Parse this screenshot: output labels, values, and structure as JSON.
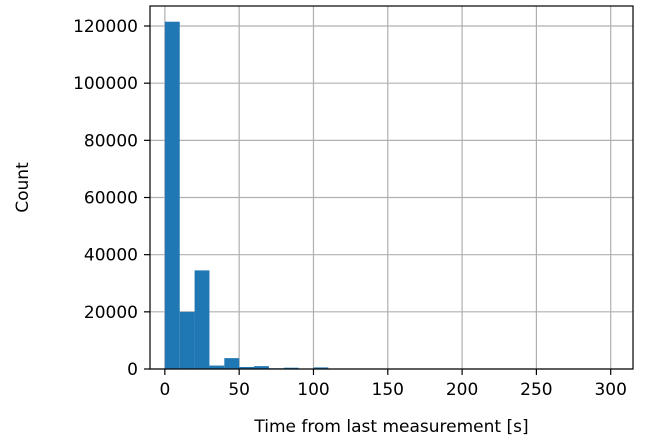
{
  "chart_data": {
    "type": "bar",
    "subtype": "histogram",
    "xlabel": "Time from last measurement [s]",
    "ylabel": "Count",
    "xlim": [
      -10,
      315
    ],
    "ylim": [
      0,
      127000
    ],
    "xticks": [
      0,
      50,
      100,
      150,
      200,
      250,
      300
    ],
    "yticks": [
      0,
      20000,
      40000,
      60000,
      80000,
      100000,
      120000
    ],
    "grid": true,
    "bar_color": "#1f77b4",
    "bin_width": 10,
    "bins": [
      {
        "start": 0,
        "end": 10,
        "value": 121500
      },
      {
        "start": 10,
        "end": 20,
        "value": 20000
      },
      {
        "start": 20,
        "end": 30,
        "value": 34500
      },
      {
        "start": 30,
        "end": 40,
        "value": 1200
      },
      {
        "start": 40,
        "end": 50,
        "value": 3800
      },
      {
        "start": 50,
        "end": 60,
        "value": 700
      },
      {
        "start": 60,
        "end": 70,
        "value": 1000
      },
      {
        "start": 70,
        "end": 80,
        "value": 250
      },
      {
        "start": 80,
        "end": 90,
        "value": 450
      },
      {
        "start": 90,
        "end": 100,
        "value": 150
      },
      {
        "start": 100,
        "end": 110,
        "value": 550
      },
      {
        "start": 110,
        "end": 120,
        "value": 80
      },
      {
        "start": 120,
        "end": 130,
        "value": 60
      },
      {
        "start": 130,
        "end": 140,
        "value": 40
      },
      {
        "start": 140,
        "end": 150,
        "value": 30
      },
      {
        "start": 150,
        "end": 160,
        "value": 25
      },
      {
        "start": 160,
        "end": 170,
        "value": 20
      },
      {
        "start": 170,
        "end": 180,
        "value": 15
      },
      {
        "start": 180,
        "end": 190,
        "value": 15
      },
      {
        "start": 190,
        "end": 200,
        "value": 10
      },
      {
        "start": 200,
        "end": 210,
        "value": 10
      },
      {
        "start": 210,
        "end": 220,
        "value": 8
      },
      {
        "start": 220,
        "end": 230,
        "value": 8
      },
      {
        "start": 230,
        "end": 240,
        "value": 6
      },
      {
        "start": 240,
        "end": 250,
        "value": 6
      },
      {
        "start": 250,
        "end": 260,
        "value": 5
      },
      {
        "start": 260,
        "end": 270,
        "value": 5
      },
      {
        "start": 270,
        "end": 280,
        "value": 4
      },
      {
        "start": 280,
        "end": 290,
        "value": 4
      },
      {
        "start": 290,
        "end": 300,
        "value": 3
      }
    ]
  }
}
